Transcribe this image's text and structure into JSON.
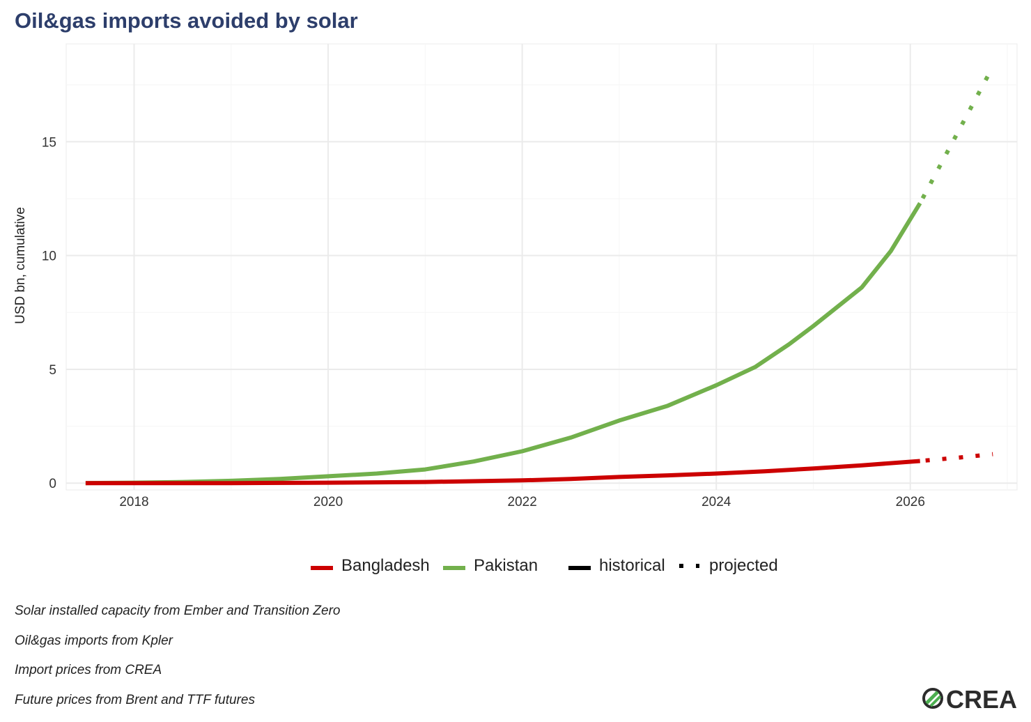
{
  "title": "Oil&gas imports avoided by solar",
  "colors": {
    "title": "#2d3e6b",
    "bangladesh": "#cc0000",
    "pakistan": "#72b04c",
    "grid": "#ebebeb"
  },
  "legend": {
    "countries": [
      {
        "name": "Bangladesh",
        "color": "#cc0000"
      },
      {
        "name": "Pakistan",
        "color": "#72b04c"
      }
    ],
    "linetypes": [
      {
        "name": "historical",
        "style": "solid"
      },
      {
        "name": "projected",
        "style": "dotted"
      }
    ],
    "placement": "bottom"
  },
  "chart_data": {
    "type": "line",
    "title": "Oil&gas imports avoided by solar",
    "xlabel": "",
    "ylabel": "USD bn, cumulative",
    "xlim": [
      2017.3,
      2027.1
    ],
    "ylim": [
      -0.3,
      19.3
    ],
    "xticks": [
      "2018",
      "2020",
      "2022",
      "2024",
      "2026"
    ],
    "yticks": [
      "0",
      "5",
      "10",
      "15"
    ],
    "grid": true,
    "series": [
      {
        "name": "Pakistan",
        "color": "#72b04c",
        "historical": {
          "x": [
            2017.5,
            2018.0,
            2018.5,
            2019.0,
            2019.5,
            2020.0,
            2020.5,
            2021.0,
            2021.5,
            2022.0,
            2022.5,
            2023.0,
            2023.5,
            2024.0,
            2024.4,
            2024.75,
            2025.0,
            2025.5,
            2025.8,
            2026.1
          ],
          "y": [
            0.0,
            0.02,
            0.05,
            0.1,
            0.18,
            0.3,
            0.42,
            0.6,
            0.95,
            1.4,
            2.0,
            2.75,
            3.4,
            4.3,
            5.1,
            6.1,
            6.9,
            8.6,
            10.2,
            12.3
          ]
        },
        "projected": {
          "x": [
            2026.1,
            2026.5,
            2026.85
          ],
          "y": [
            12.3,
            15.5,
            18.3
          ]
        }
      },
      {
        "name": "Bangladesh",
        "color": "#cc0000",
        "historical": {
          "x": [
            2017.5,
            2018.0,
            2019.0,
            2020.0,
            2021.0,
            2022.0,
            2022.5,
            2023.0,
            2023.5,
            2024.0,
            2024.5,
            2025.0,
            2025.5,
            2026.1
          ],
          "y": [
            0.0,
            0.0,
            0.0,
            0.02,
            0.05,
            0.12,
            0.18,
            0.27,
            0.34,
            0.42,
            0.52,
            0.64,
            0.78,
            0.97
          ]
        },
        "projected": {
          "x": [
            2026.1,
            2026.5,
            2026.85
          ],
          "y": [
            0.97,
            1.12,
            1.27
          ]
        }
      }
    ]
  },
  "notes": [
    "Solar installed capacity from Ember and Transition Zero",
    "Oil&gas imports from Kpler",
    "Import prices from CREA",
    "Future prices from Brent and TTF futures"
  ],
  "logo": {
    "text": "CREA",
    "icon": "crea-logo-icon"
  }
}
